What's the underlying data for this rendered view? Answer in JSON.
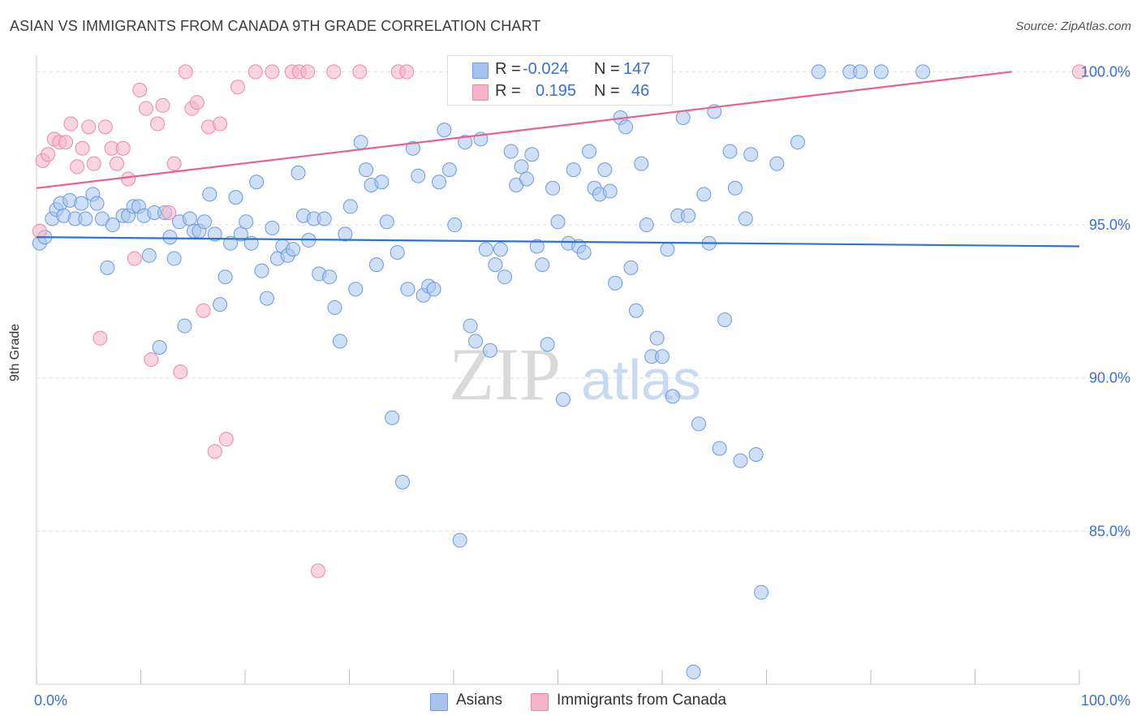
{
  "title": "ASIAN VS IMMIGRANTS FROM CANADA 9TH GRADE CORRELATION CHART",
  "source": "Source: ZipAtlas.com",
  "watermark": {
    "zip": "ZIP",
    "atlas": "atlas"
  },
  "legend": {
    "rows": [
      {
        "r_label": "R =",
        "r_value": "-0.024",
        "n_label": "N =",
        "n_value": "147",
        "color": "#a8c4ee"
      },
      {
        "r_label": "R =",
        "r_value": "0.195",
        "n_label": "N =",
        "n_value": "46",
        "color": "#f5b3c8"
      }
    ]
  },
  "bottom_legend": [
    "Asians",
    "Immigrants from Canada"
  ],
  "chart_data": {
    "type": "scatter",
    "title": "ASIAN VS IMMIGRANTS FROM CANADA 9TH GRADE CORRELATION CHART",
    "xlabel": "",
    "ylabel": "9th Grade",
    "xlim": [
      0,
      100
    ],
    "ylim": [
      80,
      100.7
    ],
    "x_tick_labels": [
      "0.0%",
      "100.0%"
    ],
    "y_ticks": [
      85,
      90,
      95,
      100
    ],
    "y_tick_labels": [
      "85.0%",
      "90.0%",
      "95.0%",
      "100.0%"
    ],
    "grid": true,
    "legend_position": "top-center",
    "series": [
      {
        "name": "Asians",
        "color": "#6a9be0",
        "fill": "#a8c4ee",
        "trend": {
          "start": [
            0,
            94.6
          ],
          "end": [
            100,
            94.3
          ]
        },
        "points": [
          [
            0.3,
            94.4
          ],
          [
            0.8,
            94.6
          ],
          [
            1.5,
            95.2
          ],
          [
            1.9,
            95.5
          ],
          [
            2.3,
            95.7
          ],
          [
            2.6,
            95.3
          ],
          [
            3.2,
            95.8
          ],
          [
            3.7,
            95.2
          ],
          [
            4.3,
            95.7
          ],
          [
            4.7,
            95.2
          ],
          [
            5.4,
            96.0
          ],
          [
            5.8,
            95.7
          ],
          [
            6.3,
            95.2
          ],
          [
            6.8,
            93.6
          ],
          [
            7.3,
            95.0
          ],
          [
            8.3,
            95.3
          ],
          [
            8.8,
            95.3
          ],
          [
            9.3,
            95.6
          ],
          [
            9.8,
            95.6
          ],
          [
            10.3,
            95.3
          ],
          [
            10.8,
            94.0
          ],
          [
            11.3,
            95.4
          ],
          [
            11.8,
            91.0
          ],
          [
            12.3,
            95.4
          ],
          [
            12.8,
            94.6
          ],
          [
            13.2,
            93.9
          ],
          [
            13.7,
            95.1
          ],
          [
            14.2,
            91.7
          ],
          [
            14.7,
            95.2
          ],
          [
            15.1,
            94.8
          ],
          [
            15.6,
            94.8
          ],
          [
            16.1,
            95.1
          ],
          [
            16.6,
            96.0
          ],
          [
            17.1,
            94.7
          ],
          [
            17.6,
            92.4
          ],
          [
            18.1,
            93.3
          ],
          [
            18.6,
            94.4
          ],
          [
            19.1,
            95.9
          ],
          [
            19.6,
            94.7
          ],
          [
            20.1,
            95.1
          ],
          [
            20.6,
            94.4
          ],
          [
            21.1,
            96.4
          ],
          [
            21.6,
            93.5
          ],
          [
            22.1,
            92.6
          ],
          [
            22.6,
            94.9
          ],
          [
            23.1,
            93.9
          ],
          [
            23.6,
            94.3
          ],
          [
            24.1,
            94.0
          ],
          [
            24.6,
            94.2
          ],
          [
            25.1,
            96.7
          ],
          [
            25.6,
            95.3
          ],
          [
            26.1,
            94.5
          ],
          [
            26.6,
            95.2
          ],
          [
            27.1,
            93.4
          ],
          [
            27.6,
            95.2
          ],
          [
            28.1,
            93.3
          ],
          [
            28.6,
            92.3
          ],
          [
            29.1,
            91.2
          ],
          [
            29.6,
            94.7
          ],
          [
            30.1,
            95.6
          ],
          [
            30.6,
            92.9
          ],
          [
            31.1,
            97.7
          ],
          [
            31.6,
            96.8
          ],
          [
            32.1,
            96.3
          ],
          [
            32.6,
            93.7
          ],
          [
            33.1,
            96.4
          ],
          [
            33.6,
            95.1
          ],
          [
            34.1,
            88.7
          ],
          [
            34.6,
            94.1
          ],
          [
            35.1,
            86.6
          ],
          [
            35.6,
            92.9
          ],
          [
            36.1,
            97.5
          ],
          [
            36.6,
            96.6
          ],
          [
            37.1,
            92.7
          ],
          [
            37.6,
            93.0
          ],
          [
            38.1,
            92.9
          ],
          [
            38.6,
            96.4
          ],
          [
            39.1,
            98.1
          ],
          [
            39.6,
            96.8
          ],
          [
            40.1,
            95.0
          ],
          [
            40.6,
            84.7
          ],
          [
            41.1,
            97.7
          ],
          [
            41.6,
            91.7
          ],
          [
            42.1,
            91.2
          ],
          [
            42.6,
            97.8
          ],
          [
            43.1,
            94.2
          ],
          [
            43.5,
            90.9
          ],
          [
            44.0,
            93.7
          ],
          [
            44.5,
            94.2
          ],
          [
            44.9,
            93.3
          ],
          [
            45.5,
            97.4
          ],
          [
            46.0,
            96.3
          ],
          [
            46.5,
            96.9
          ],
          [
            47.0,
            96.5
          ],
          [
            47.5,
            97.3
          ],
          [
            48.0,
            94.3
          ],
          [
            48.5,
            93.7
          ],
          [
            49.0,
            91.1
          ],
          [
            49.5,
            96.2
          ],
          [
            50.0,
            95.1
          ],
          [
            50.5,
            89.3
          ],
          [
            51.0,
            94.4
          ],
          [
            51.5,
            96.8
          ],
          [
            52.0,
            94.3
          ],
          [
            52.5,
            94.1
          ],
          [
            53.0,
            97.4
          ],
          [
            53.5,
            96.2
          ],
          [
            54.0,
            96.0
          ],
          [
            54.5,
            96.8
          ],
          [
            55.0,
            96.1
          ],
          [
            55.5,
            93.1
          ],
          [
            56.0,
            98.5
          ],
          [
            56.5,
            98.2
          ],
          [
            57.0,
            93.6
          ],
          [
            57.5,
            92.2
          ],
          [
            58.0,
            97.0
          ],
          [
            58.5,
            95.0
          ],
          [
            59.0,
            90.7
          ],
          [
            59.5,
            91.3
          ],
          [
            60.0,
            90.7
          ],
          [
            60.5,
            94.2
          ],
          [
            61.0,
            89.4
          ],
          [
            61.5,
            95.3
          ],
          [
            62.0,
            98.5
          ],
          [
            62.5,
            95.3
          ],
          [
            63.0,
            80.4
          ],
          [
            63.5,
            88.5
          ],
          [
            64.0,
            96.0
          ],
          [
            64.5,
            94.4
          ],
          [
            65.0,
            98.7
          ],
          [
            65.5,
            87.7
          ],
          [
            66.0,
            91.9
          ],
          [
            66.5,
            97.4
          ],
          [
            67.0,
            96.2
          ],
          [
            67.5,
            87.3
          ],
          [
            68.0,
            95.2
          ],
          [
            68.5,
            97.3
          ],
          [
            69.0,
            87.5
          ],
          [
            69.5,
            83.0
          ],
          [
            71.0,
            97.0
          ],
          [
            73.0,
            97.7
          ],
          [
            75.0,
            100.0
          ],
          [
            78.0,
            100.0
          ],
          [
            79.0,
            100.0
          ],
          [
            81.0,
            100.0
          ],
          [
            85.0,
            100.0
          ]
        ]
      },
      {
        "name": "Immigrants from Canada",
        "color": "#e88aa8",
        "fill": "#f5b3c8",
        "trend": {
          "start": [
            0,
            96.2
          ],
          "end": [
            93.5,
            100.0
          ]
        },
        "points": [
          [
            0.3,
            94.8
          ],
          [
            0.6,
            97.1
          ],
          [
            1.1,
            97.3
          ],
          [
            1.7,
            97.8
          ],
          [
            2.2,
            97.7
          ],
          [
            2.8,
            97.7
          ],
          [
            3.3,
            98.3
          ],
          [
            3.9,
            96.9
          ],
          [
            4.4,
            97.5
          ],
          [
            5.0,
            98.2
          ],
          [
            5.5,
            97.0
          ],
          [
            6.1,
            91.3
          ],
          [
            6.6,
            98.2
          ],
          [
            7.2,
            97.5
          ],
          [
            7.7,
            97.0
          ],
          [
            8.3,
            97.5
          ],
          [
            8.8,
            96.5
          ],
          [
            9.4,
            93.9
          ],
          [
            9.9,
            99.4
          ],
          [
            10.5,
            98.8
          ],
          [
            11.0,
            90.6
          ],
          [
            11.6,
            98.3
          ],
          [
            12.1,
            98.9
          ],
          [
            12.7,
            95.4
          ],
          [
            13.2,
            97.0
          ],
          [
            13.8,
            90.2
          ],
          [
            14.3,
            100.0
          ],
          [
            14.9,
            98.8
          ],
          [
            15.4,
            99.0
          ],
          [
            16.0,
            92.2
          ],
          [
            16.5,
            98.2
          ],
          [
            17.1,
            87.6
          ],
          [
            17.6,
            98.3
          ],
          [
            18.2,
            88.0
          ],
          [
            19.3,
            99.5
          ],
          [
            21.0,
            100.0
          ],
          [
            22.6,
            100.0
          ],
          [
            24.5,
            100.0
          ],
          [
            25.2,
            100.0
          ],
          [
            26.0,
            100.0
          ],
          [
            27.0,
            83.7
          ],
          [
            28.5,
            100.0
          ],
          [
            31.0,
            100.0
          ],
          [
            34.7,
            100.0
          ],
          [
            35.5,
            100.0
          ],
          [
            100.0,
            100.0
          ]
        ]
      }
    ]
  }
}
